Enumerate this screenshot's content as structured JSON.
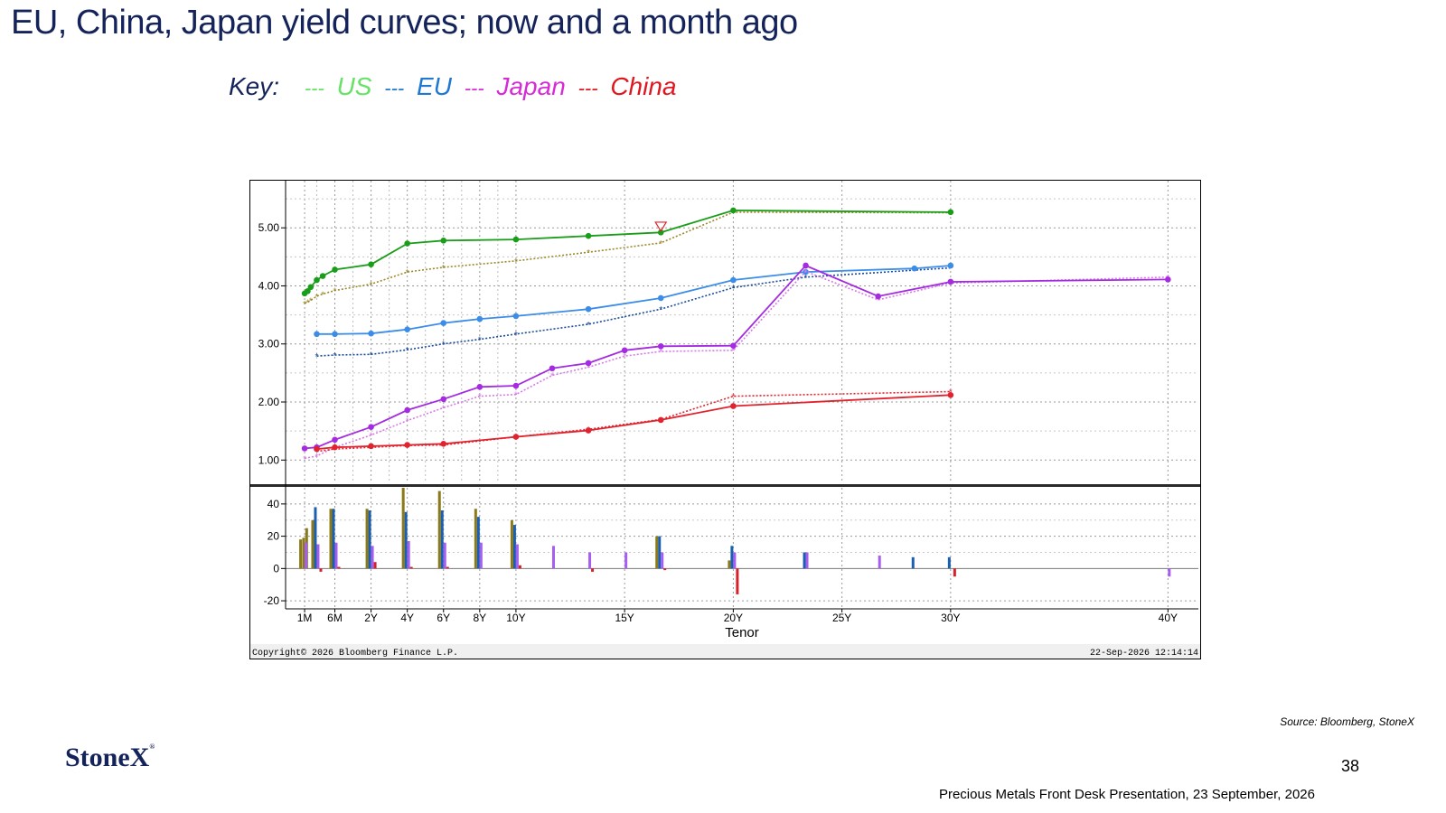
{
  "slide": {
    "title": "EU, China, Japan yield curves; now and a month ago",
    "key_label": "Key:",
    "key_items": [
      {
        "dash": "---",
        "label": "US",
        "color": "#66e266"
      },
      {
        "dash": "---",
        "label": "EU",
        "color": "#1f78d1"
      },
      {
        "dash": "---",
        "label": "Japan",
        "color": "#d62bd6"
      },
      {
        "dash": "---",
        "label": "China",
        "color": "#e0161e"
      }
    ],
    "source": "Source: Bloomberg, StoneX",
    "logo": "StoneX",
    "page_number": "38",
    "footer": "Precious Metals Front Desk Presentation, 23 September, 2026"
  },
  "chart_data": {
    "type": "line",
    "xlabel": "Tenor",
    "x_tick_labels": [
      "1M",
      "6M",
      "2Y",
      "4Y",
      "6Y",
      "8Y",
      "10Y",
      "15Y",
      "20Y",
      "25Y",
      "30Y",
      "40Y"
    ],
    "x_tick_years": [
      0.083,
      0.5,
      1,
      1.5,
      2,
      2.5,
      3,
      4.5,
      6,
      7.5,
      9,
      12
    ],
    "tenor_points": [
      "1M",
      "2M",
      "3M",
      "4M",
      "6M",
      "1Y",
      "2Y",
      "3Y",
      "4Y",
      "5Y",
      "6Y",
      "7Y",
      "8Y",
      "9Y",
      "10Y",
      "15Y",
      "20Y",
      "25Y",
      "30Y",
      "40Y"
    ],
    "y_ticks": [
      "1.00",
      "2.00",
      "3.00",
      "4.00",
      "5.00"
    ],
    "ylim": [
      0.6,
      5.75
    ],
    "series": [
      {
        "name": "US",
        "color_now": "#1a9e1a",
        "color_prior": "#9a8a2a",
        "now": [
          [
            0.083,
            3.87
          ],
          [
            0.125,
            3.91
          ],
          [
            0.167,
            3.98
          ],
          [
            0.25,
            4.1
          ],
          [
            0.333,
            4.17
          ],
          [
            0.5,
            4.28
          ],
          [
            1,
            4.37
          ],
          [
            1.5,
            4.73
          ],
          [
            2,
            4.78
          ],
          [
            3,
            4.8
          ],
          [
            4,
            4.86
          ],
          [
            5,
            4.92
          ],
          [
            6,
            5.3
          ],
          [
            9,
            5.27
          ]
        ],
        "prior": [
          [
            0.083,
            3.7
          ],
          [
            0.125,
            3.72
          ],
          [
            0.167,
            3.75
          ],
          [
            0.25,
            3.82
          ],
          [
            0.333,
            3.86
          ],
          [
            0.5,
            3.92
          ],
          [
            1,
            4.03
          ],
          [
            1.5,
            4.24
          ],
          [
            2,
            4.32
          ],
          [
            3,
            4.43
          ],
          [
            4,
            4.58
          ],
          [
            5,
            4.74
          ],
          [
            6,
            5.27
          ],
          [
            9,
            5.26
          ]
        ]
      },
      {
        "name": "EU",
        "color_now": "#3b8de8",
        "color_prior": "#1a4a9a",
        "now": [
          [
            0.25,
            3.17
          ],
          [
            0.5,
            3.17
          ],
          [
            1,
            3.18
          ],
          [
            1.5,
            3.25
          ],
          [
            2,
            3.36
          ],
          [
            2.5,
            3.43
          ],
          [
            3,
            3.48
          ],
          [
            4,
            3.6
          ],
          [
            5,
            3.79
          ],
          [
            6,
            4.1
          ],
          [
            7,
            4.24
          ],
          [
            8.5,
            4.3
          ],
          [
            9,
            4.35
          ]
        ],
        "prior": [
          [
            0.25,
            2.79
          ],
          [
            0.5,
            2.81
          ],
          [
            1,
            2.82
          ],
          [
            1.5,
            2.9
          ],
          [
            2,
            3.0
          ],
          [
            2.5,
            3.08
          ],
          [
            3,
            3.17
          ],
          [
            4,
            3.34
          ],
          [
            5,
            3.6
          ],
          [
            6,
            3.97
          ],
          [
            7,
            4.15
          ],
          [
            8.5,
            4.27
          ],
          [
            9,
            4.31
          ]
        ]
      },
      {
        "name": "Japan",
        "color_now": "#a42be0",
        "color_prior": "#d67ae8",
        "now": [
          [
            0.083,
            1.2
          ],
          [
            0.25,
            1.22
          ],
          [
            0.5,
            1.35
          ],
          [
            1,
            1.57
          ],
          [
            1.5,
            1.86
          ],
          [
            2,
            2.05
          ],
          [
            2.5,
            2.26
          ],
          [
            3,
            2.28
          ],
          [
            3.5,
            2.58
          ],
          [
            4,
            2.67
          ],
          [
            4.5,
            2.89
          ],
          [
            5,
            2.96
          ],
          [
            6,
            2.97
          ],
          [
            7,
            4.35
          ],
          [
            8,
            3.82
          ],
          [
            9,
            4.07
          ],
          [
            12,
            4.11
          ]
        ],
        "prior": [
          [
            0.083,
            1.03
          ],
          [
            0.25,
            1.07
          ],
          [
            0.5,
            1.22
          ],
          [
            1,
            1.43
          ],
          [
            1.5,
            1.68
          ],
          [
            2,
            1.9
          ],
          [
            2.5,
            2.1
          ],
          [
            3,
            2.13
          ],
          [
            3.5,
            2.46
          ],
          [
            4,
            2.6
          ],
          [
            4.5,
            2.79
          ],
          [
            5,
            2.87
          ],
          [
            6,
            2.89
          ],
          [
            7,
            4.25
          ],
          [
            8,
            3.76
          ],
          [
            9,
            4.05
          ],
          [
            12,
            4.15
          ]
        ]
      },
      {
        "name": "China",
        "color_now": "#e0232e",
        "color_prior": "#e0232e",
        "now": [
          [
            0.25,
            1.19
          ],
          [
            0.5,
            1.22
          ],
          [
            1,
            1.24
          ],
          [
            1.5,
            1.26
          ],
          [
            2,
            1.28
          ],
          [
            3,
            1.4
          ],
          [
            4,
            1.51
          ],
          [
            5,
            1.69
          ],
          [
            6,
            1.93
          ],
          [
            9,
            2.12
          ]
        ],
        "prior": [
          [
            0.25,
            1.15
          ],
          [
            0.5,
            1.19
          ],
          [
            1,
            1.22
          ],
          [
            1.5,
            1.25
          ],
          [
            2,
            1.26
          ],
          [
            3,
            1.4
          ],
          [
            4,
            1.53
          ],
          [
            5,
            1.7
          ],
          [
            6,
            2.1
          ],
          [
            9,
            2.18
          ]
        ]
      }
    ],
    "change_panel": {
      "ylabel_ticks": [
        "-20",
        "0",
        "20",
        "40"
      ],
      "ylim": [
        -25,
        50
      ],
      "bars": [
        {
          "series": "US",
          "color": "#8a7a1a",
          "points": [
            [
              0.083,
              18
            ],
            [
              0.125,
              19
            ],
            [
              0.167,
              25
            ],
            [
              0.25,
              30
            ],
            [
              0.5,
              37
            ],
            [
              1,
              37
            ],
            [
              1.5,
              50
            ],
            [
              2,
              48
            ],
            [
              2.5,
              37
            ],
            [
              3,
              30
            ],
            [
              5,
              20
            ],
            [
              6,
              5
            ]
          ]
        },
        {
          "series": "EU",
          "color": "#1a5fb0",
          "points": [
            [
              0.25,
              38
            ],
            [
              0.5,
              37
            ],
            [
              1,
              36
            ],
            [
              1.5,
              35
            ],
            [
              2,
              36
            ],
            [
              2.5,
              32
            ],
            [
              3,
              27
            ],
            [
              5,
              20
            ],
            [
              6,
              14
            ],
            [
              7,
              10
            ],
            [
              8.5,
              7
            ],
            [
              9,
              7
            ]
          ]
        },
        {
          "series": "Japan",
          "color": "#a75ef0",
          "points": [
            [
              0.083,
              16
            ],
            [
              0.25,
              15
            ],
            [
              0.5,
              16
            ],
            [
              1,
              14
            ],
            [
              1.5,
              17
            ],
            [
              2,
              16
            ],
            [
              2.5,
              16
            ],
            [
              3,
              15
            ],
            [
              3.5,
              14
            ],
            [
              4,
              10
            ],
            [
              4.5,
              10
            ],
            [
              5,
              10
            ],
            [
              6,
              10
            ],
            [
              7,
              10
            ],
            [
              8,
              8
            ],
            [
              12,
              -5
            ]
          ]
        },
        {
          "series": "China",
          "color": "#d6202a",
          "points": [
            [
              0.25,
              -2
            ],
            [
              0.5,
              1
            ],
            [
              1,
              4
            ],
            [
              1.5,
              1
            ],
            [
              2,
              1
            ],
            [
              3,
              2
            ],
            [
              4,
              -2
            ],
            [
              5,
              -1
            ],
            [
              6,
              -16
            ],
            [
              9,
              -5
            ]
          ]
        }
      ]
    },
    "copyright": "Copyright© 2026 Bloomberg Finance L.P.",
    "timestamp": "22-Sep-2026 12:14:14"
  }
}
